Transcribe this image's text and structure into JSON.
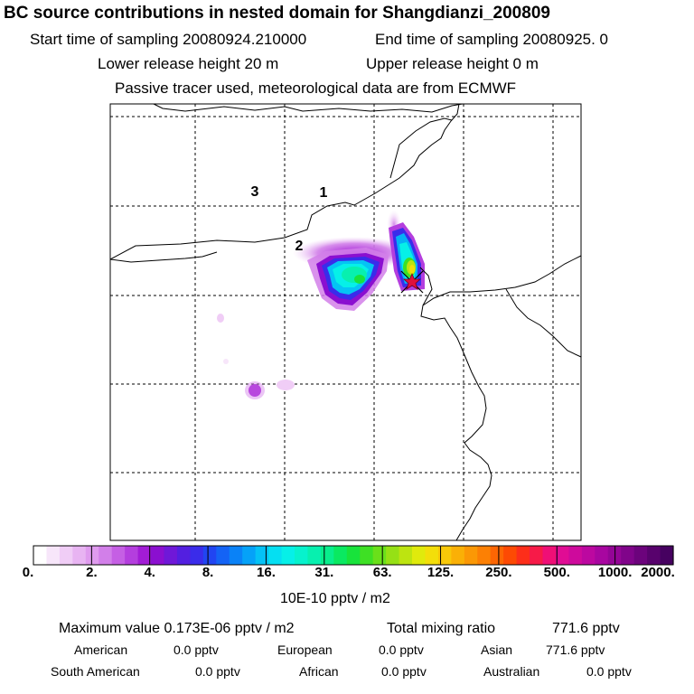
{
  "header": {
    "title": "BC  source contributions in nested domain for Shangdianzi_200809",
    "start_label": "Start time of sampling 20080924.210000",
    "end_label": "End time of sampling 20080925.     0",
    "lower_label": "Lower release height   20 m",
    "upper_label": "Upper release height    0 m",
    "note": "Passive tracer used, meteorological data are from ECMWF"
  },
  "map": {
    "region_labels": [
      "3",
      "1",
      "2"
    ],
    "receptor_marker": "star-marker"
  },
  "colorbar": {
    "colors": [
      "#ffffff",
      "#f7e6fa",
      "#f0cdf6",
      "#e8b4f2",
      "#df9bee",
      "#d27fe9",
      "#c55fe4",
      "#b43ede",
      "#a21cd6",
      "#8b0fd0",
      "#6f18d8",
      "#531fe0",
      "#3a2cea",
      "#2145f2",
      "#1463f5",
      "#0a82f7",
      "#05a2f8",
      "#04c2f6",
      "#05dff2",
      "#06f0e8",
      "#07f2cd",
      "#07f0af",
      "#08ee8c",
      "#0ae961",
      "#18e33b",
      "#3ee024",
      "#6ae01a",
      "#96e015",
      "#bde410",
      "#e0ea0c",
      "#f3de0a",
      "#f8c808",
      "#fab006",
      "#fb9805",
      "#fc8004",
      "#fd6603",
      "#fd4a03",
      "#fd2e1a",
      "#f71a48",
      "#ef0f76",
      "#e00c94",
      "#ce0a9c",
      "#bc08a0",
      "#a806a0",
      "#940596",
      "#80048a",
      "#6c037c",
      "#58026d",
      "#460160"
    ],
    "tick_labels": [
      "0.",
      "2.",
      "4.",
      "8.",
      "16.",
      "31.",
      "63.",
      "125.",
      "250.",
      "500.",
      "1000.",
      "2000."
    ],
    "units": "10E-10 pptv / m2"
  },
  "summary": {
    "max_label": "Maximum value  0.173E-06 pptv / m2",
    "total_label": "Total mixing ratio",
    "total_value": "771.6 pptv",
    "regions": [
      {
        "name": "American",
        "value": "0.0 pptv"
      },
      {
        "name": "European",
        "value": "0.0 pptv"
      },
      {
        "name": "Asian",
        "value": "771.6 pptv"
      },
      {
        "name": "South American",
        "value": "0.0 pptv"
      },
      {
        "name": "African",
        "value": "0.0 pptv"
      },
      {
        "name": "Australian",
        "value": "0.0 pptv"
      }
    ]
  }
}
